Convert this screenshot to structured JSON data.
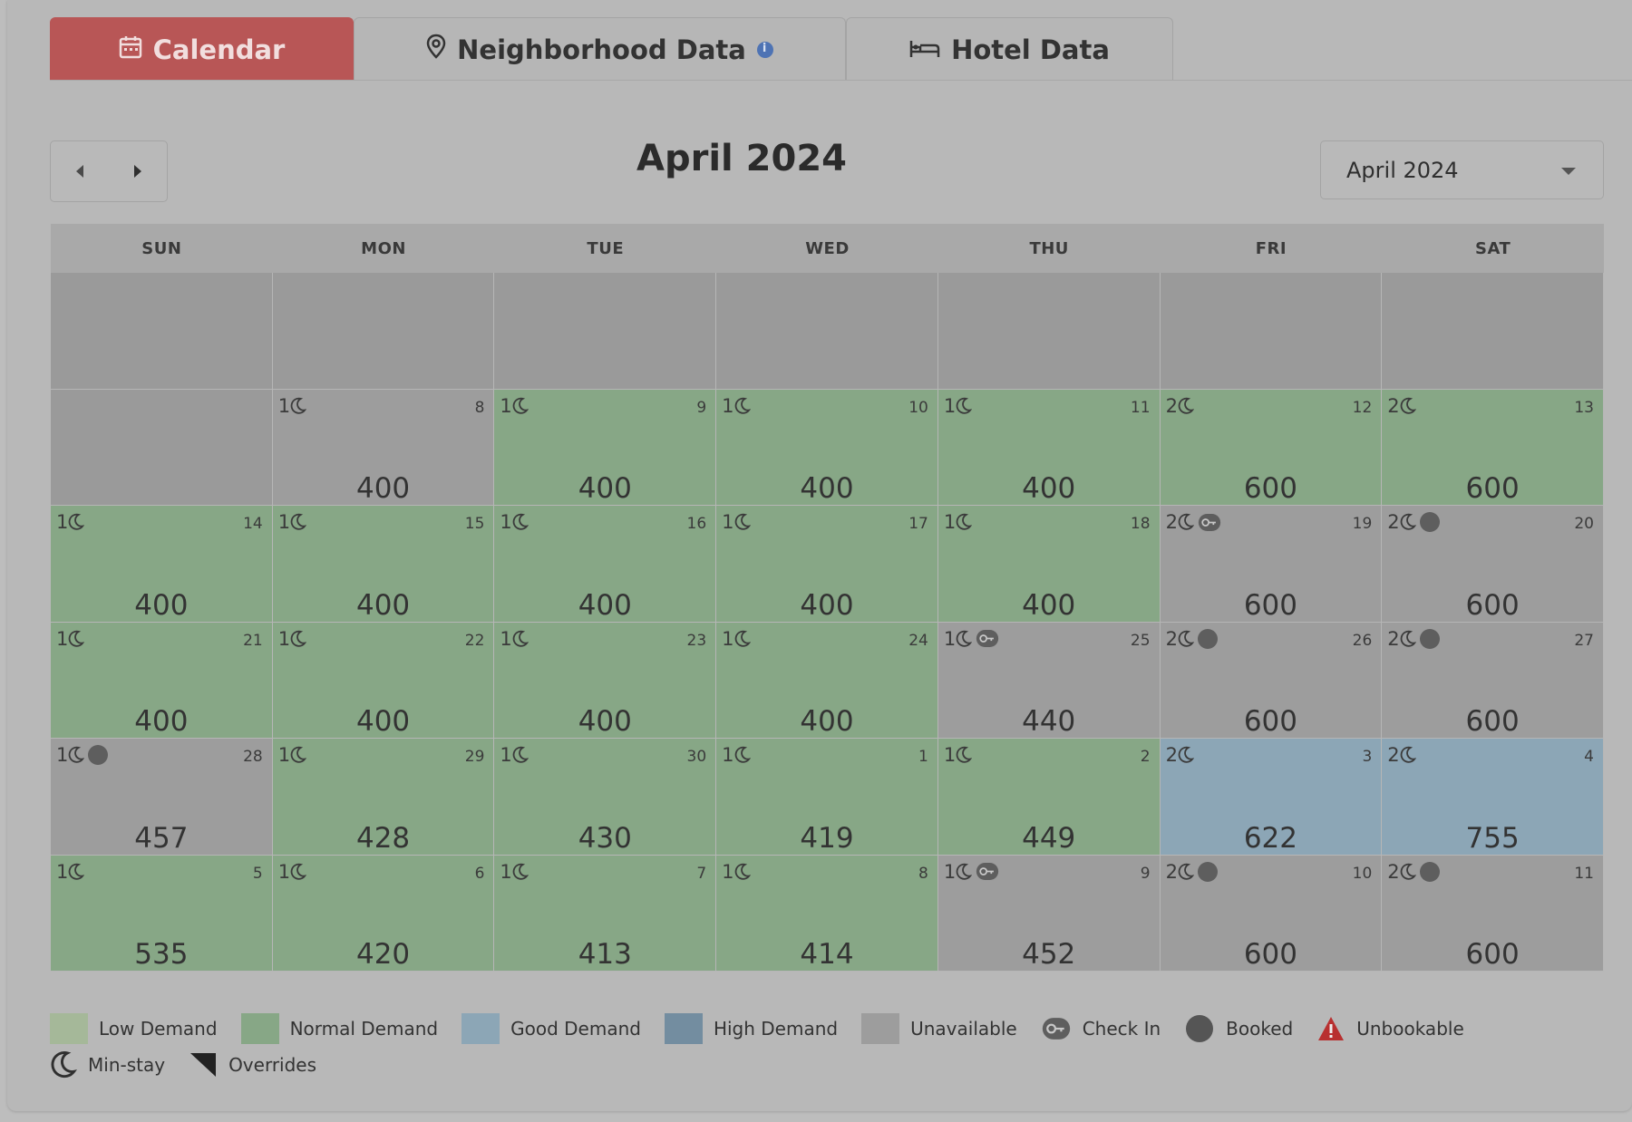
{
  "tabs": [
    {
      "label": "Calendar",
      "icon": "calendar-icon",
      "active": true
    },
    {
      "label": "Neighborhood Data",
      "icon": "map-pin-icon",
      "active": false
    },
    {
      "label": "Hotel Data",
      "icon": "bed-icon",
      "active": false
    }
  ],
  "colors": {
    "low_demand": "#a5b899",
    "normal_demand": "#87a786",
    "good_demand": "#8ca6b6",
    "high_demand": "#738da0",
    "unavailable": "#9d9d9d",
    "calendar_tab": "#b85656",
    "info_dot": "#4e73b4",
    "unbookable": "#b83030"
  },
  "calendar": {
    "title": "April 2024",
    "month_select": "April 2024",
    "weekdays": [
      "SUN",
      "MON",
      "TUE",
      "WED",
      "THU",
      "FRI",
      "SAT"
    ],
    "cells": [
      {
        "empty": true
      },
      {
        "empty": true
      },
      {
        "empty": true
      },
      {
        "empty": true
      },
      {
        "empty": true
      },
      {
        "empty": true
      },
      {
        "empty": true
      },
      {
        "empty": true
      },
      {
        "min": "1",
        "day": "8",
        "price": "400",
        "status": "unavail",
        "badge": ""
      },
      {
        "min": "1",
        "day": "9",
        "price": "400",
        "status": "normal",
        "badge": ""
      },
      {
        "min": "1",
        "day": "10",
        "price": "400",
        "status": "normal",
        "badge": ""
      },
      {
        "min": "1",
        "day": "11",
        "price": "400",
        "status": "normal",
        "badge": ""
      },
      {
        "min": "2",
        "day": "12",
        "price": "600",
        "status": "normal",
        "badge": ""
      },
      {
        "min": "2",
        "day": "13",
        "price": "600",
        "status": "normal",
        "badge": ""
      },
      {
        "min": "1",
        "day": "14",
        "price": "400",
        "status": "normal",
        "badge": ""
      },
      {
        "min": "1",
        "day": "15",
        "price": "400",
        "status": "normal",
        "badge": ""
      },
      {
        "min": "1",
        "day": "16",
        "price": "400",
        "status": "normal",
        "badge": ""
      },
      {
        "min": "1",
        "day": "17",
        "price": "400",
        "status": "normal",
        "badge": ""
      },
      {
        "min": "1",
        "day": "18",
        "price": "400",
        "status": "normal",
        "badge": ""
      },
      {
        "min": "2",
        "day": "19",
        "price": "600",
        "status": "unavail",
        "badge": "checkin"
      },
      {
        "min": "2",
        "day": "20",
        "price": "600",
        "status": "unavail",
        "badge": "booked"
      },
      {
        "min": "1",
        "day": "21",
        "price": "400",
        "status": "normal",
        "badge": ""
      },
      {
        "min": "1",
        "day": "22",
        "price": "400",
        "status": "normal",
        "badge": ""
      },
      {
        "min": "1",
        "day": "23",
        "price": "400",
        "status": "normal",
        "badge": ""
      },
      {
        "min": "1",
        "day": "24",
        "price": "400",
        "status": "normal",
        "badge": ""
      },
      {
        "min": "1",
        "day": "25",
        "price": "440",
        "status": "unavail",
        "badge": "checkin"
      },
      {
        "min": "2",
        "day": "26",
        "price": "600",
        "status": "unavail",
        "badge": "booked"
      },
      {
        "min": "2",
        "day": "27",
        "price": "600",
        "status": "unavail",
        "badge": "booked"
      },
      {
        "min": "1",
        "day": "28",
        "price": "457",
        "status": "unavail",
        "badge": "booked"
      },
      {
        "min": "1",
        "day": "29",
        "price": "428",
        "status": "normal",
        "badge": ""
      },
      {
        "min": "1",
        "day": "30",
        "price": "430",
        "status": "normal",
        "badge": ""
      },
      {
        "min": "1",
        "day": "1",
        "price": "419",
        "status": "normal",
        "badge": ""
      },
      {
        "min": "1",
        "day": "2",
        "price": "449",
        "status": "normal",
        "badge": ""
      },
      {
        "min": "2",
        "day": "3",
        "price": "622",
        "status": "good",
        "badge": ""
      },
      {
        "min": "2",
        "day": "4",
        "price": "755",
        "status": "good",
        "badge": ""
      },
      {
        "min": "1",
        "day": "5",
        "price": "535",
        "status": "normal",
        "badge": ""
      },
      {
        "min": "1",
        "day": "6",
        "price": "420",
        "status": "normal",
        "badge": ""
      },
      {
        "min": "1",
        "day": "7",
        "price": "413",
        "status": "normal",
        "badge": ""
      },
      {
        "min": "1",
        "day": "8",
        "price": "414",
        "status": "normal",
        "badge": ""
      },
      {
        "min": "1",
        "day": "9",
        "price": "452",
        "status": "unavail",
        "badge": "checkin"
      },
      {
        "min": "2",
        "day": "10",
        "price": "600",
        "status": "unavail",
        "badge": "booked"
      },
      {
        "min": "2",
        "day": "11",
        "price": "600",
        "status": "unavail",
        "badge": "booked"
      }
    ]
  },
  "legend": {
    "row1": [
      {
        "label": "Low Demand",
        "type": "swatch",
        "color_key": "low_demand"
      },
      {
        "label": "Normal Demand",
        "type": "swatch",
        "color_key": "normal_demand"
      },
      {
        "label": "Good Demand",
        "type": "swatch",
        "color_key": "good_demand"
      },
      {
        "label": "High Demand",
        "type": "swatch",
        "color_key": "high_demand"
      },
      {
        "label": "Unavailable",
        "type": "swatch",
        "color_key": "unavailable"
      },
      {
        "label": "Check In",
        "type": "icon",
        "icon": "key-icon"
      },
      {
        "label": "Booked",
        "type": "icon",
        "icon": "booked-dot-icon"
      },
      {
        "label": "Unbookable",
        "type": "icon",
        "icon": "warning-triangle-icon"
      }
    ],
    "row2": [
      {
        "label": "Min-stay",
        "type": "icon",
        "icon": "moon-icon"
      },
      {
        "label": "Overrides",
        "type": "icon",
        "icon": "corner-triangle-icon"
      }
    ]
  }
}
